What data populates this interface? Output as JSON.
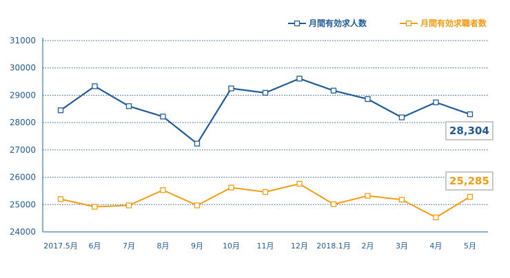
{
  "chart_data": {
    "type": "line",
    "categories": [
      "2017.5月",
      "6月",
      "7月",
      "8月",
      "9月",
      "10月",
      "11月",
      "12月",
      "2018.1月",
      "2月",
      "3月",
      "4月",
      "5月"
    ],
    "series": [
      {
        "name": "月間有効求人数",
        "color": "#1f5b99",
        "values": [
          28450,
          29330,
          28600,
          28220,
          27230,
          29250,
          29090,
          29610,
          29170,
          28860,
          28190,
          28740,
          28304
        ]
      },
      {
        "name": "月間有効求職者数",
        "color": "#f39c12",
        "values": [
          25200,
          24920,
          24970,
          25530,
          24970,
          25620,
          25460,
          25760,
          25010,
          25320,
          25180,
          24530,
          25285
        ]
      }
    ],
    "ylim": [
      24000,
      31000
    ],
    "yticks": [
      24000,
      25000,
      26000,
      27000,
      28000,
      29000,
      30000,
      31000
    ],
    "grid": "horizontal dotted",
    "legend": "top-right",
    "annotations": [
      {
        "series": 0,
        "text": "28,304"
      },
      {
        "series": 1,
        "text": "25,285"
      }
    ]
  }
}
